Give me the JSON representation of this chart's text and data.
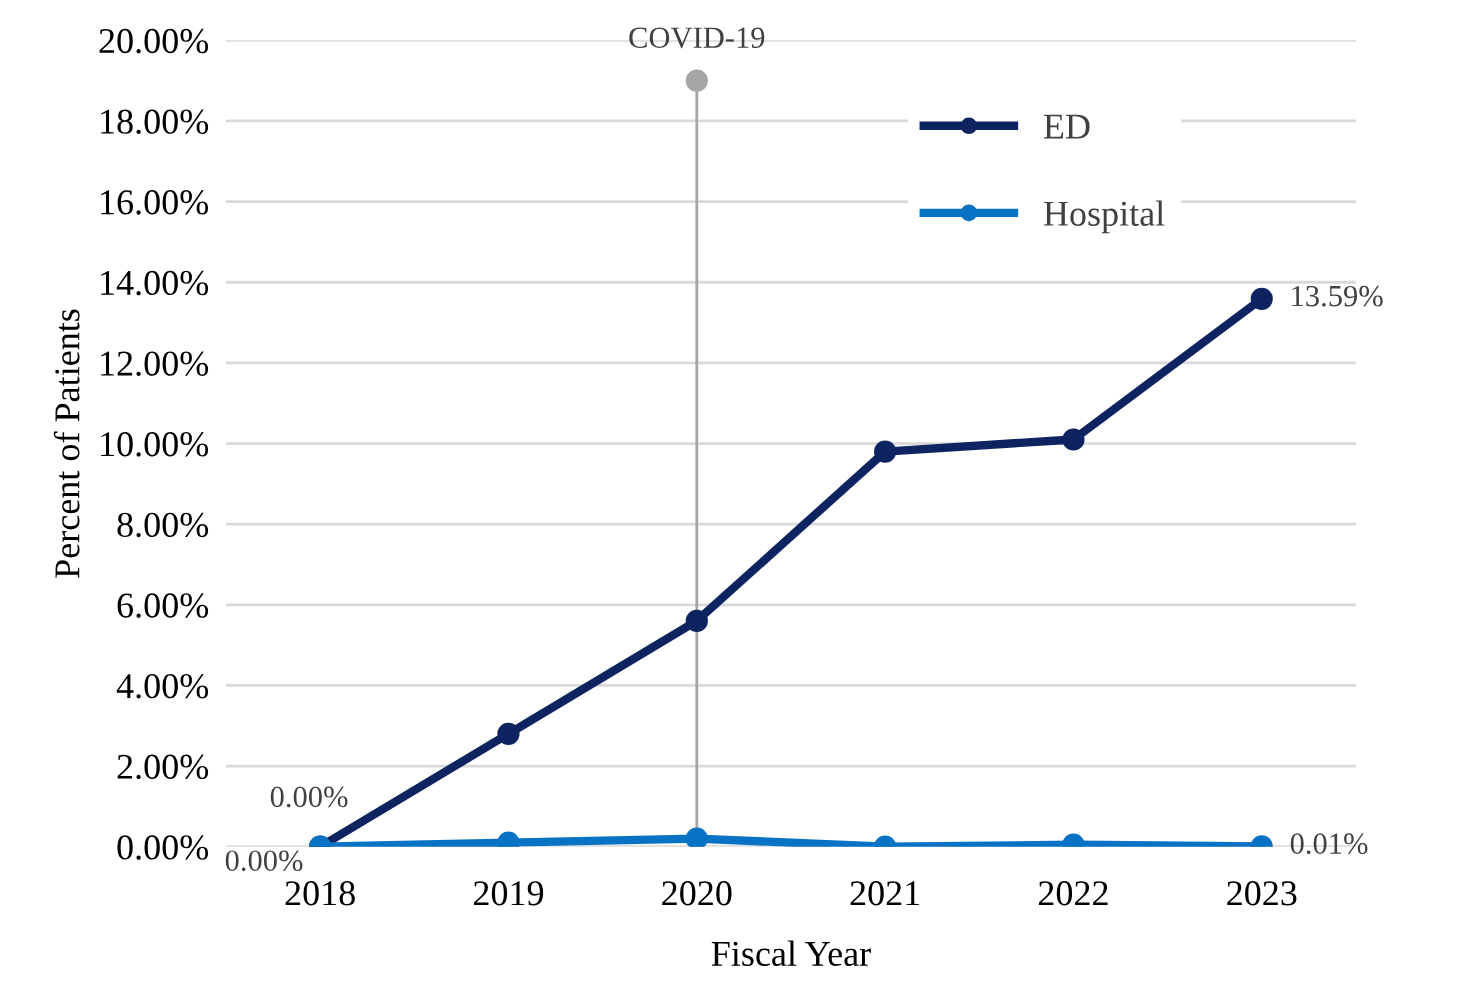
{
  "chart_data": {
    "type": "line",
    "xlabel": "Fiscal Year",
    "ylabel": "Percent of Patients",
    "categories": [
      "2018",
      "2019",
      "2020",
      "2021",
      "2022",
      "2023"
    ],
    "series": [
      {
        "name": "ED",
        "color": "#0d2461",
        "values": [
          0.0,
          2.8,
          5.6,
          9.8,
          10.1,
          13.59
        ],
        "value_labels": [
          "0.00%",
          null,
          null,
          null,
          null,
          "13.59%"
        ]
      },
      {
        "name": "Hospital",
        "color": "#0872c4",
        "values": [
          0.0,
          0.1,
          0.2,
          0.0,
          0.05,
          0.01
        ],
        "value_labels": [
          "0.00%",
          null,
          null,
          null,
          null,
          "0.01%"
        ]
      }
    ],
    "ylim": [
      0,
      20
    ],
    "yticks": [
      {
        "value": 0,
        "label": "0.00%"
      },
      {
        "value": 2,
        "label": "2.00%"
      },
      {
        "value": 4,
        "label": "4.00%"
      },
      {
        "value": 6,
        "label": "6.00%"
      },
      {
        "value": 8,
        "label": "8.00%"
      },
      {
        "value": 10,
        "label": "10.00%"
      },
      {
        "value": 12,
        "label": "12.00%"
      },
      {
        "value": 14,
        "label": "14.00%"
      },
      {
        "value": 16,
        "label": "16.00%"
      },
      {
        "value": 18,
        "label": "18.00%"
      },
      {
        "value": 20,
        "label": "20.00%"
      }
    ],
    "ref_lines": [
      {
        "axis": "x",
        "value": "2020",
        "label": "COVID-19",
        "color": "#a6a6a6"
      }
    ],
    "grid": "y",
    "legend": "top right",
    "marker": "circle",
    "line_style": "solid"
  }
}
